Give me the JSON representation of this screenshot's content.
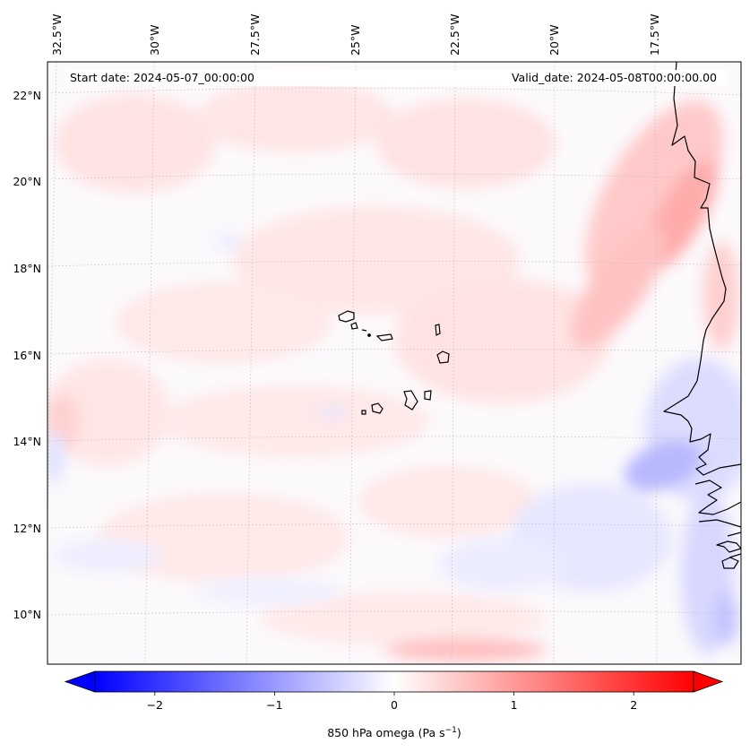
{
  "map": {
    "start_date_label": "Start date: 2024-05-07_00:00:00",
    "valid_date_label": "Valid_date: 2024-05-08T00:00:00.00",
    "lon_labels": [
      "32.5°W",
      "30°W",
      "27.5°W",
      "25°W",
      "22.5°W",
      "20°W",
      "17.5°W"
    ],
    "lat_labels": [
      "22°N",
      "20°N",
      "18°N",
      "16°N",
      "14°N",
      "12°N",
      "10°N"
    ],
    "extent": {
      "lon_min": -33.0,
      "lon_max": -15.5,
      "lat_min": 8.8,
      "lat_max": 22.8
    },
    "variable": "850 hPa omega",
    "features": [
      "West African coastline",
      "Cape Verde islands"
    ]
  },
  "colorbar": {
    "label_text": "850 hPa omega (Pa s",
    "label_sup": "−1",
    "label_close": ")",
    "tick_labels": [
      "−2",
      "−1",
      "0",
      "1",
      "2"
    ],
    "tick_values": [
      -2,
      -1,
      0,
      1,
      2
    ],
    "range": [
      -2.5,
      2.5
    ],
    "extend": "both",
    "colormap": "bwr",
    "colors": {
      "negative": "#0000ff",
      "zero": "#ffffff",
      "positive": "#ff0000"
    }
  }
}
